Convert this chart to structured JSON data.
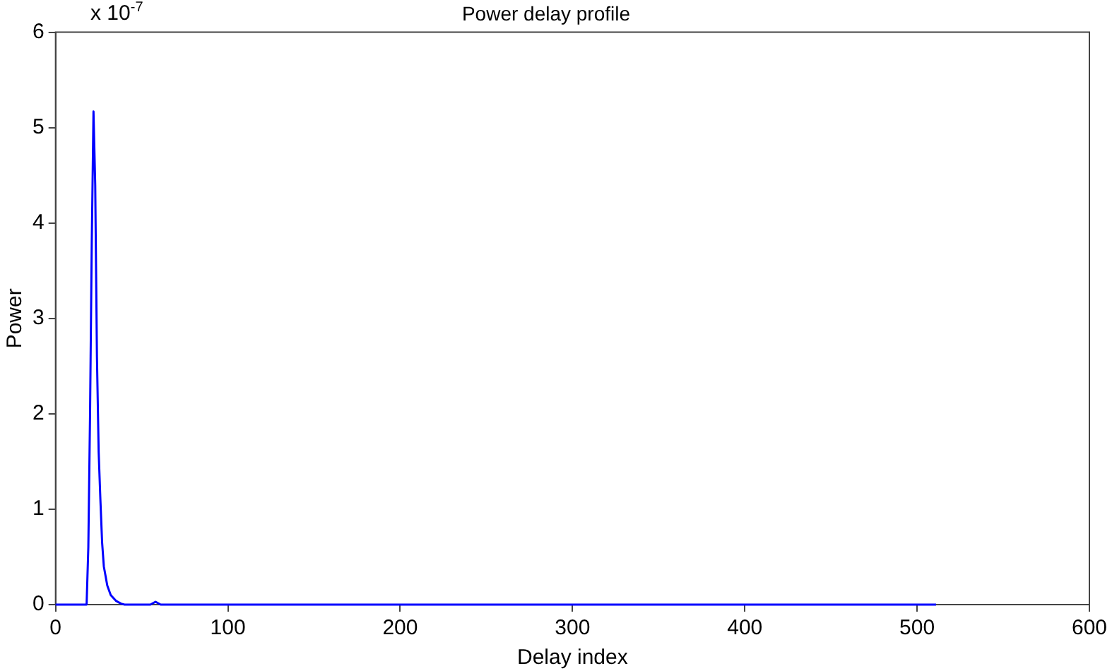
{
  "chart_data": {
    "type": "line",
    "title": "Power delay profile",
    "xlabel": "Delay index",
    "ylabel": "Power",
    "annotations": [
      "x 10$^{-7}$"
    ],
    "x": [
      0,
      18,
      19,
      20,
      21,
      22,
      23,
      24,
      25,
      26,
      27,
      28,
      29,
      30,
      32,
      35,
      38,
      40,
      55,
      58,
      61,
      511
    ],
    "series": [
      {
        "color": "#0000ff",
        "values": [
          0,
          0,
          0.6,
          2.0,
          3.8,
          5.17,
          4.4,
          2.6,
          1.6,
          1.1,
          0.65,
          0.4,
          0.3,
          0.2,
          0.1,
          0.04,
          0.01,
          0,
          0,
          0.03,
          0,
          0
        ]
      }
    ],
    "xlim": [
      0,
      600
    ],
    "xticks": [
      0,
      100,
      200,
      300,
      400,
      500,
      600
    ],
    "ylim": [
      0,
      6
    ],
    "yticks": [
      0,
      1,
      2,
      3,
      4,
      5,
      6
    ],
    "grid": false,
    "legend": false,
    "marker": "none",
    "line_style": "solid"
  }
}
